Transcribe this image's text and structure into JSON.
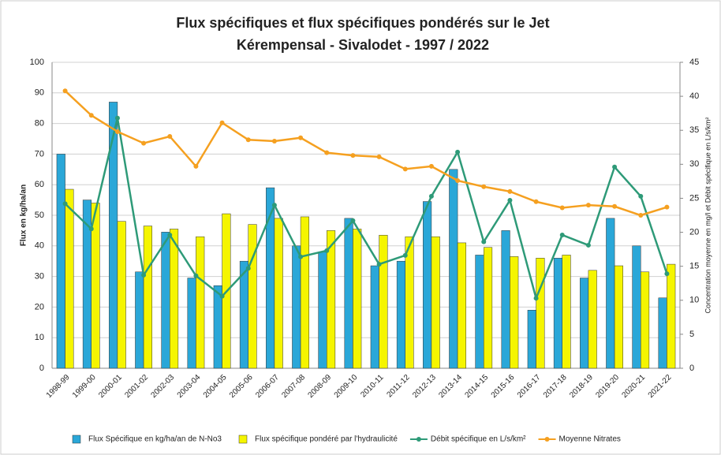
{
  "chart_data": {
    "type": "bar",
    "title": "Flux spécifiques et flux spécifiques pondérés sur le Jet",
    "subtitle": "Kérempensal - Sivalodet - 1997 / 2022",
    "ylabel": "Flux en kg/ha/an",
    "y2label": "Concentration moyenne en mg/l et Débit spécifique en L/s/km²",
    "categories": [
      "1998-99",
      "1999-00",
      "2000-01",
      "2001-02",
      "2002-03",
      "2003-04",
      "2004-05",
      "2005-06",
      "2006-07",
      "2007-08",
      "2008-09",
      "2009-10",
      "2010-11",
      "2011-12",
      "2012-13",
      "2013-14",
      "2014-15",
      "2015-16",
      "2016-17",
      "2017-18",
      "2018-19",
      "2019-20",
      "2020-21",
      "2021-22"
    ],
    "series": [
      {
        "name": "Flux Spécifique en kg/ha/an de N-No3",
        "type": "bar",
        "color": "#2aa7d8",
        "values": [
          70,
          55,
          87,
          31.5,
          44.5,
          29.5,
          27,
          35,
          59,
          40,
          38,
          49,
          33.5,
          35,
          54.5,
          65,
          37,
          45,
          19,
          36,
          29.5,
          49,
          40,
          23
        ]
      },
      {
        "name": "Flux spécifique pondéré par l'hydraulicité",
        "type": "bar",
        "color": "#f5f500",
        "values": [
          58.5,
          54,
          48,
          46.5,
          45.5,
          43,
          50.5,
          47,
          49,
          49.5,
          45,
          45.5,
          43.5,
          43,
          43,
          41,
          39.5,
          36.5,
          36,
          37,
          32,
          33.5,
          31.5,
          34
        ]
      },
      {
        "name": "Débit spécifique en L/s/km²",
        "type": "line",
        "axis": "y2",
        "color": "#2e9a78",
        "values": [
          24.2,
          20.5,
          36.8,
          13.7,
          19.6,
          13.6,
          10.6,
          14.7,
          24,
          16.4,
          17.3,
          21.7,
          15.3,
          16.6,
          25.3,
          31.8,
          18.6,
          24.7,
          10.3,
          19.6,
          18.1,
          29.6,
          25.3,
          13.9
        ]
      },
      {
        "name": "Moyenne Nitrates",
        "type": "line",
        "axis": "y2",
        "color": "#f5a020",
        "values": [
          40.8,
          37.2,
          34.8,
          33.1,
          34.1,
          29.7,
          36.1,
          33.6,
          33.4,
          33.9,
          31.7,
          31.3,
          31.1,
          29.3,
          29.7,
          27.6,
          26.7,
          26,
          24.5,
          23.6,
          24,
          23.8,
          22.5,
          23.7
        ]
      }
    ],
    "ylim": [
      0,
      100
    ],
    "yticks": [
      0,
      10,
      20,
      30,
      40,
      50,
      60,
      70,
      80,
      90,
      100
    ],
    "y2lim": [
      0,
      45
    ],
    "y2ticks": [
      0,
      5,
      10,
      15,
      20,
      25,
      30,
      35,
      40,
      45
    ],
    "grid": true,
    "legend": "bottom"
  }
}
